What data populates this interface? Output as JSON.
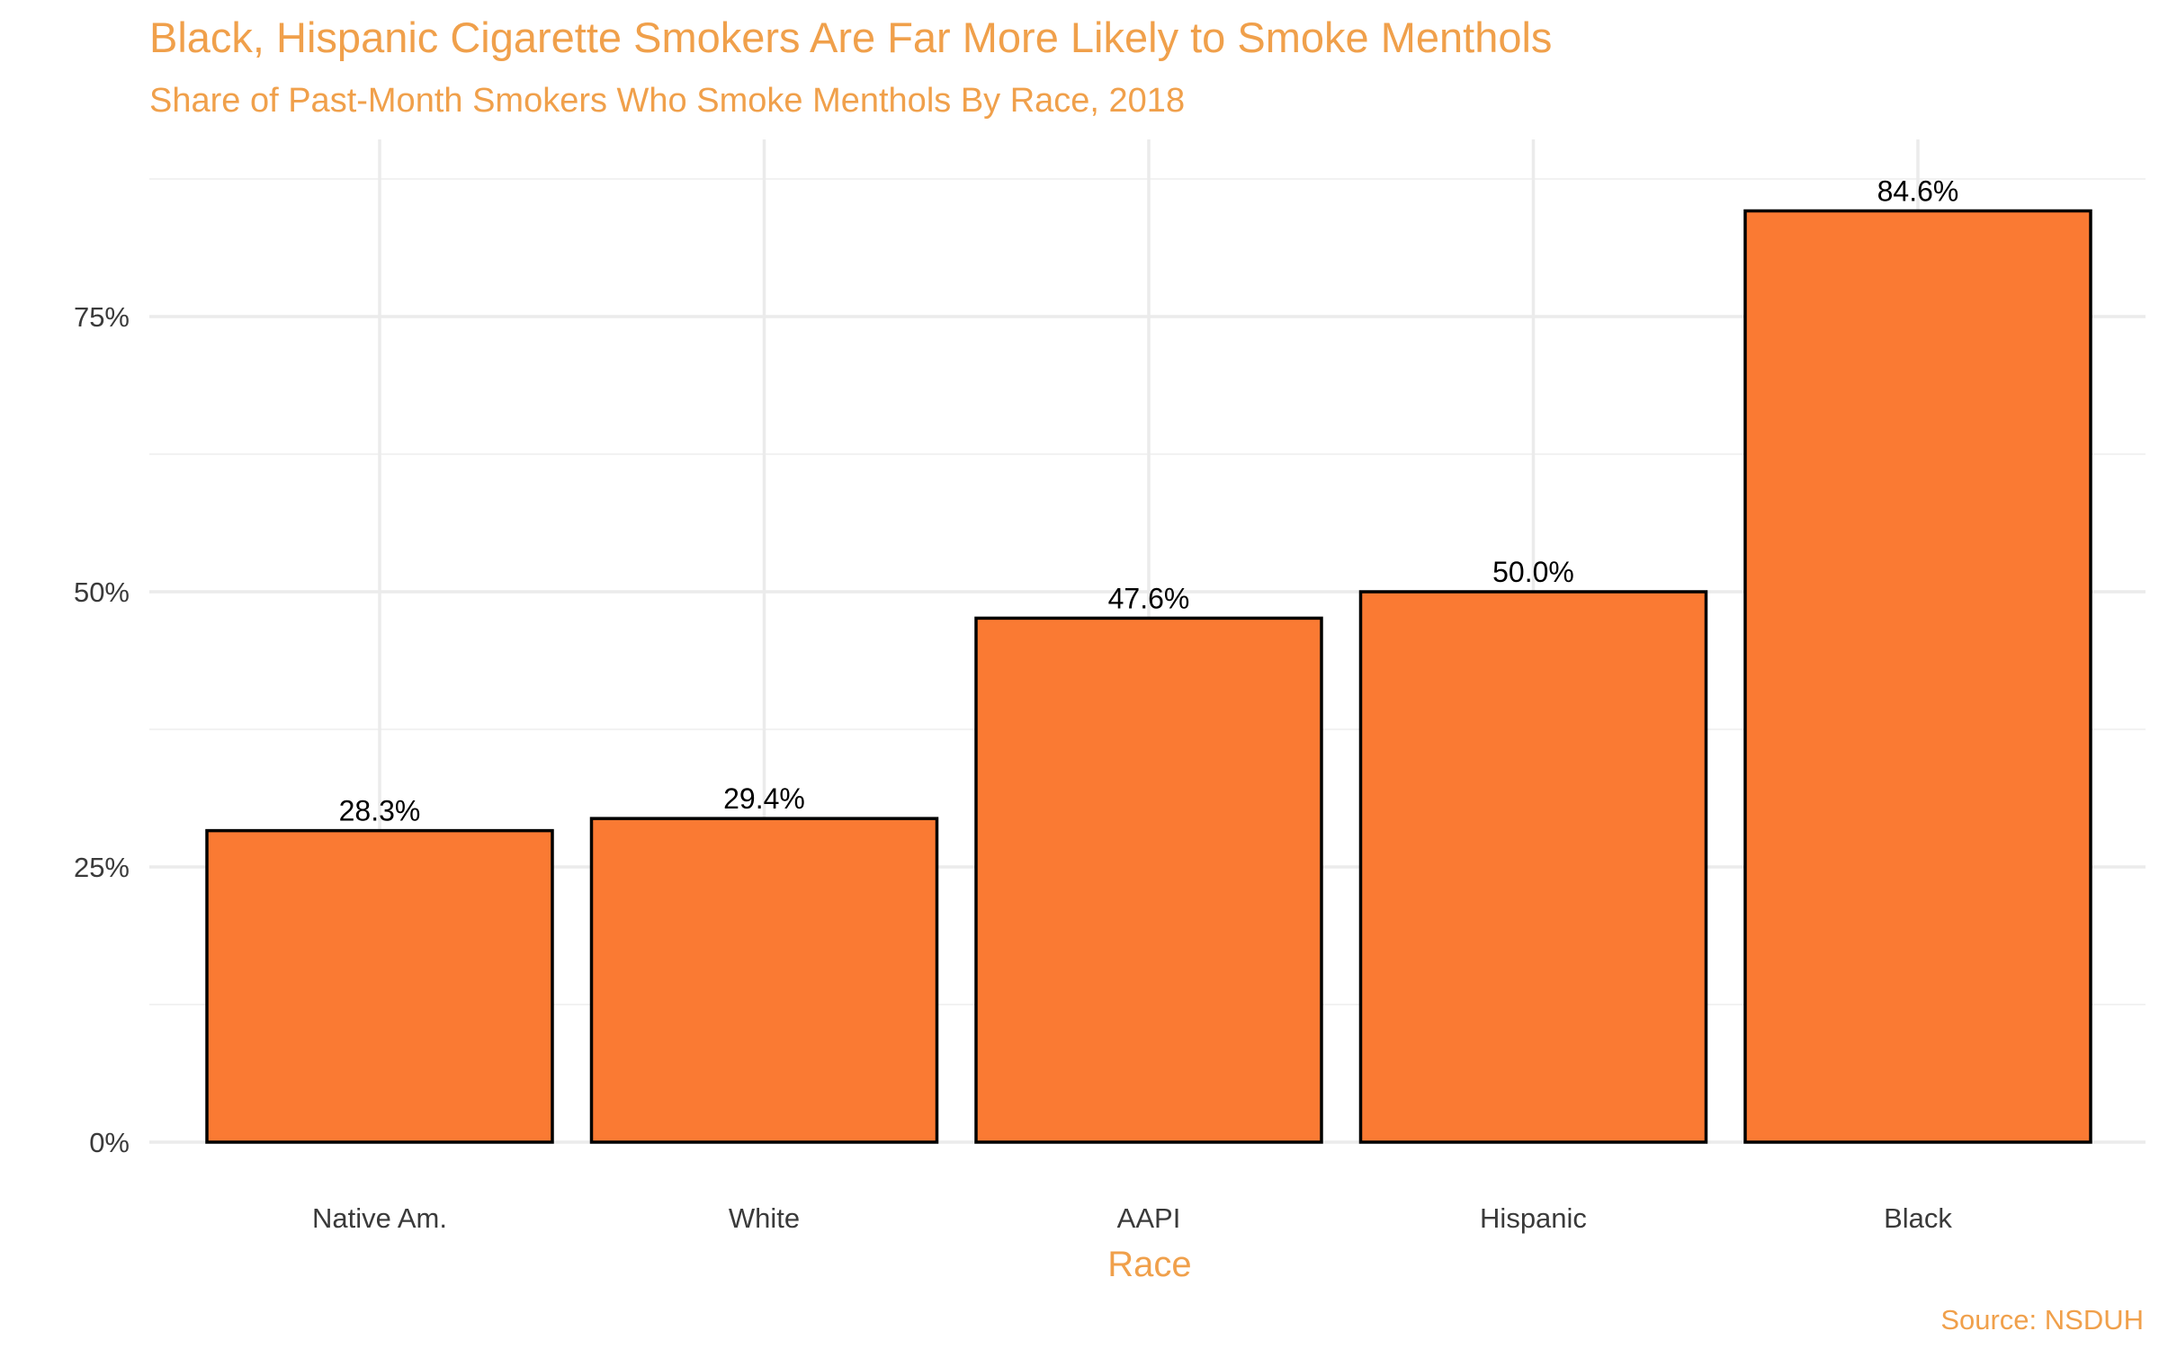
{
  "chart_data": {
    "type": "bar",
    "title": "Black, Hispanic Cigarette Smokers Are Far More Likely to Smoke Menthols",
    "subtitle": "Share of Past-Month Smokers Who Smoke Menthols By Race, 2018",
    "xlabel": "Race",
    "ylabel": "",
    "caption": "Source: NSDUH",
    "categories": [
      "Native Am.",
      "White",
      "AAPI",
      "Hispanic",
      "Black"
    ],
    "values": [
      28.3,
      29.4,
      47.6,
      50.0,
      84.6
    ],
    "value_labels": [
      "28.3%",
      "29.4%",
      "47.6%",
      "50.0%",
      "84.6%"
    ],
    "ylim": [
      0,
      90
    ],
    "y_ticks": [
      0,
      25,
      50,
      75
    ],
    "y_tick_labels": [
      "0%",
      "25%",
      "50%",
      "75%"
    ],
    "grid": true,
    "legend": "none",
    "colors": {
      "bar_fill": "#FA7A33",
      "bar_outline": "#000000",
      "text_accent": "#F0A04B"
    }
  }
}
